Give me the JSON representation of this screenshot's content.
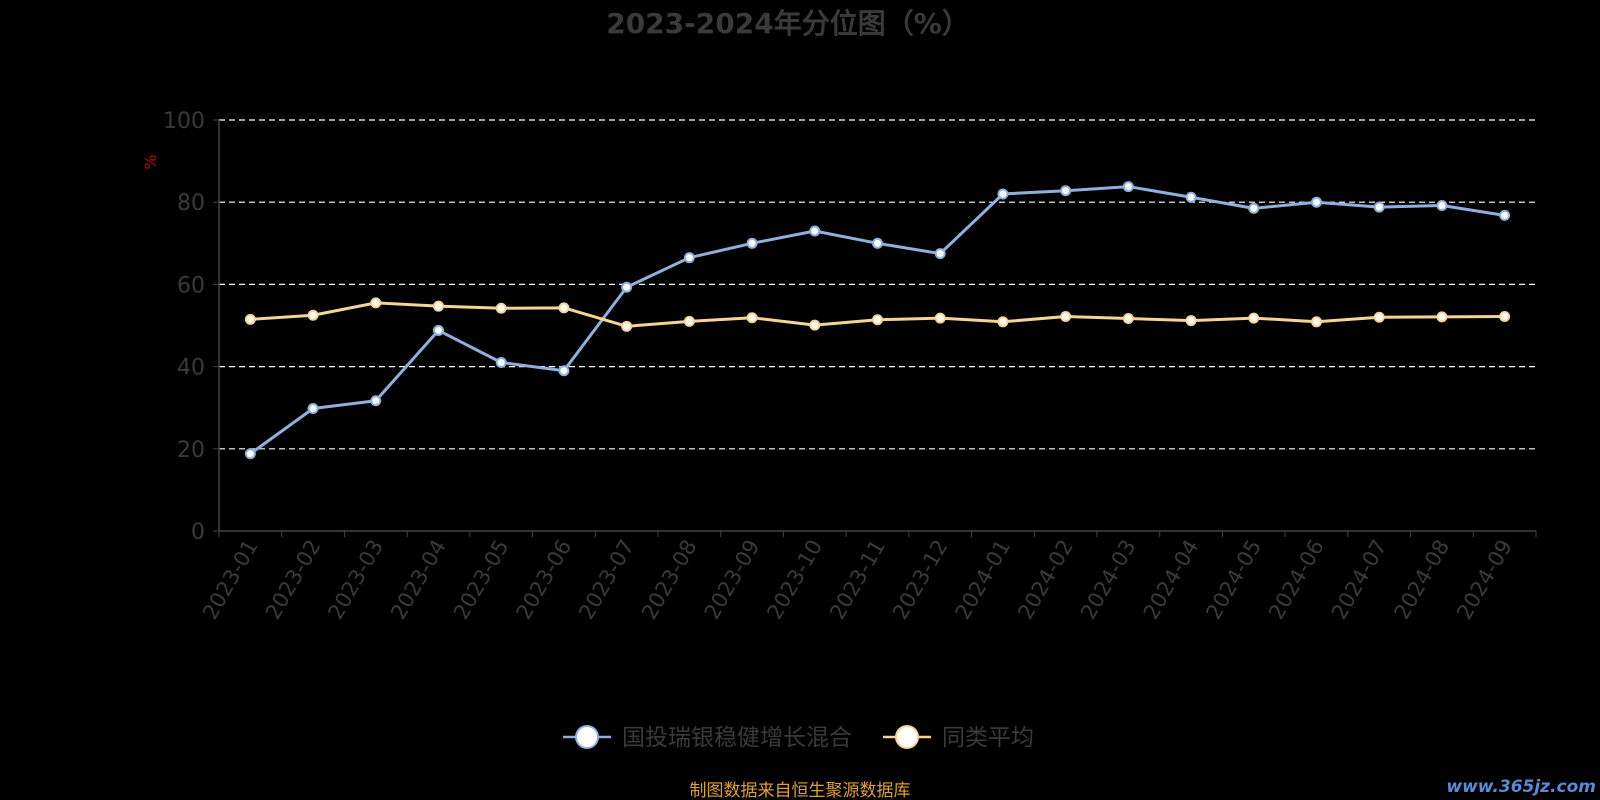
{
  "chart_data": {
    "type": "line",
    "title": "2023-2024年分位图（%）",
    "ylabel": "%",
    "xlabel": "",
    "ylim": [
      0,
      100
    ],
    "yticks": [
      0,
      20,
      40,
      60,
      80,
      100
    ],
    "grid": true,
    "legend_position": "bottom",
    "categories": [
      "2023-01",
      "2023-02",
      "2023-03",
      "2023-04",
      "2023-05",
      "2023-06",
      "2023-07",
      "2023-08",
      "2023-09",
      "2023-10",
      "2023-11",
      "2023-12",
      "2024-01",
      "2024-02",
      "2024-03",
      "2024-04",
      "2024-05",
      "2024-06",
      "2024-07",
      "2024-08",
      "2024-09"
    ],
    "series": [
      {
        "name": "国投瑞银稳健增长混合",
        "color": "#8fb0dd",
        "values": [
          18.8,
          29.8,
          31.7,
          48.8,
          41.0,
          39.0,
          59.3,
          66.5,
          70.0,
          73.0,
          70.0,
          67.5,
          82.0,
          82.8,
          83.8,
          81.2,
          78.5,
          80.0,
          78.8,
          79.2,
          76.8
        ]
      },
      {
        "name": "同类平均",
        "color": "#f6d494",
        "values": [
          51.5,
          52.5,
          55.5,
          54.7,
          54.2,
          54.3,
          49.8,
          51.0,
          51.9,
          50.1,
          51.4,
          51.8,
          50.9,
          52.2,
          51.7,
          51.2,
          51.8,
          50.9,
          52.0,
          52.1,
          52.2
        ]
      }
    ]
  },
  "source_note": "制图数据来自恒生聚源数据库",
  "watermark": "www.365jz.com",
  "colors": {
    "title": "#3a3a3a",
    "axis_text": "#3a3a3a",
    "ylabel": "#c00000",
    "grid": "#ffffff",
    "source": "#e0a030"
  }
}
